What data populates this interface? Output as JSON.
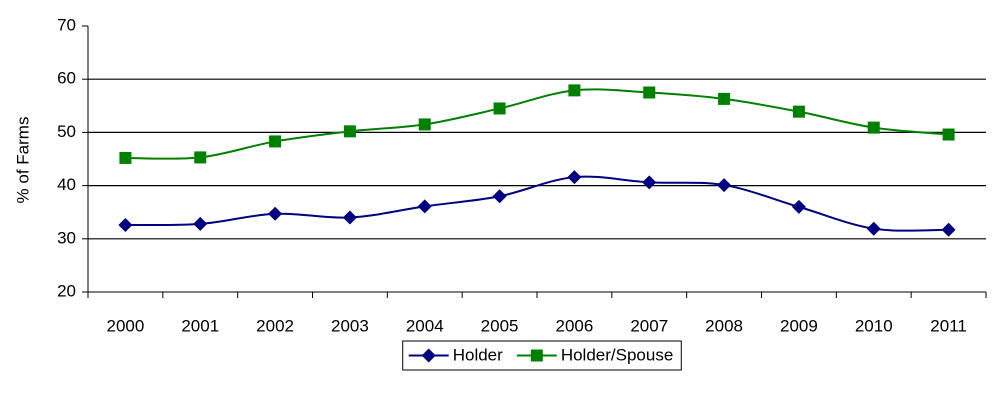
{
  "chart_data": {
    "type": "line",
    "y_label": "% of Farms",
    "categories": [
      "2000",
      "2001",
      "2002",
      "2003",
      "2004",
      "2005",
      "2006",
      "2007",
      "2008",
      "2009",
      "2010",
      "2011"
    ],
    "series": [
      {
        "name": "Holder",
        "color": "#000080",
        "marker": "diamond",
        "values": [
          32.6,
          32.8,
          34.7,
          34.0,
          36.1,
          38.0,
          41.6,
          40.6,
          40.1,
          36.0,
          31.9,
          31.7
        ]
      },
      {
        "name": "Holder/Spouse",
        "color": "#008000",
        "marker": "square",
        "values": [
          45.2,
          45.3,
          48.3,
          50.2,
          51.5,
          54.5,
          57.9,
          57.5,
          56.3,
          53.9,
          50.9,
          49.6
        ]
      }
    ],
    "ylim": [
      20,
      70
    ],
    "yticks": [
      20,
      30,
      40,
      50,
      60,
      70
    ],
    "grid": true,
    "smooth": true,
    "legend": "bottom"
  }
}
